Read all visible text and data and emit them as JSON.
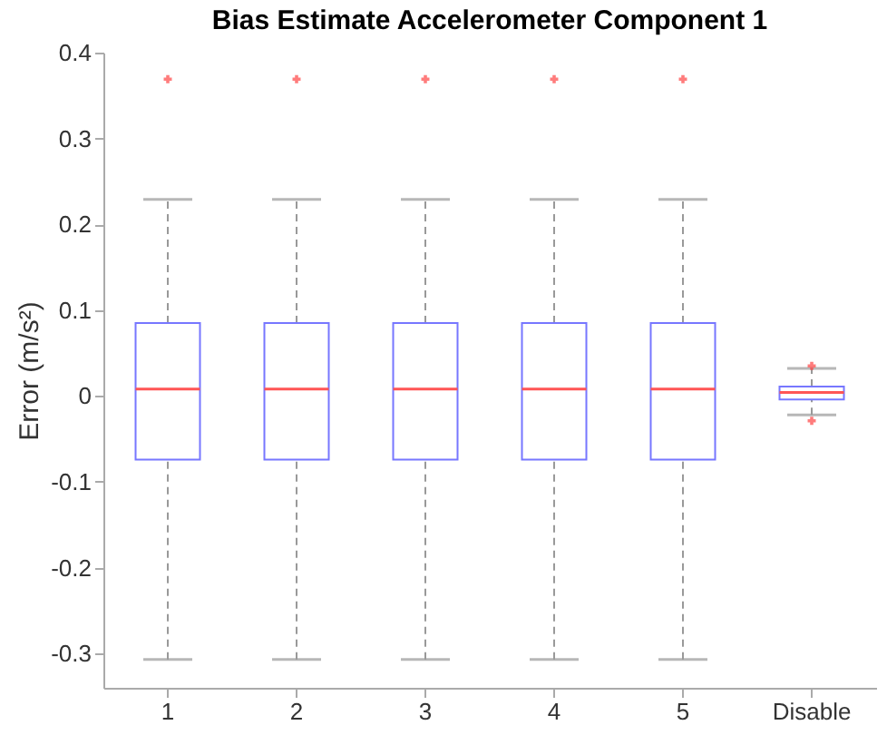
{
  "chart_data": {
    "type": "box",
    "title": "Bias Estimate Accelerometer Component 1",
    "ylabel": "Error (m/s²)",
    "categories": [
      "1",
      "2",
      "3",
      "4",
      "5",
      "Disable"
    ],
    "boxes": [
      {
        "low": -0.307,
        "q1": -0.074,
        "median": 0.008,
        "q3": 0.085,
        "high": 0.229,
        "outliers": [
          0.369
        ]
      },
      {
        "low": -0.307,
        "q1": -0.074,
        "median": 0.008,
        "q3": 0.085,
        "high": 0.229,
        "outliers": [
          0.369
        ]
      },
      {
        "low": -0.307,
        "q1": -0.074,
        "median": 0.008,
        "q3": 0.085,
        "high": 0.229,
        "outliers": [
          0.369
        ]
      },
      {
        "low": -0.307,
        "q1": -0.074,
        "median": 0.008,
        "q3": 0.085,
        "high": 0.229,
        "outliers": [
          0.369
        ]
      },
      {
        "low": -0.307,
        "q1": -0.074,
        "median": 0.008,
        "q3": 0.085,
        "high": 0.229,
        "outliers": [
          0.369
        ]
      },
      {
        "low": -0.022,
        "q1": -0.004,
        "median": 0.004,
        "q3": 0.011,
        "high": 0.032,
        "outliers": [
          0.035,
          -0.029
        ]
      }
    ],
    "color": "#7777ff",
    "ylim": [
      -0.34,
      0.4
    ],
    "yticks": [
      -0.3,
      -0.2,
      -0.1,
      {
        "value": 0,
        "label": "0"
      },
      0.1,
      0.2,
      0.3,
      0.4
    ],
    "grid": false,
    "line_style": "dashed"
  }
}
